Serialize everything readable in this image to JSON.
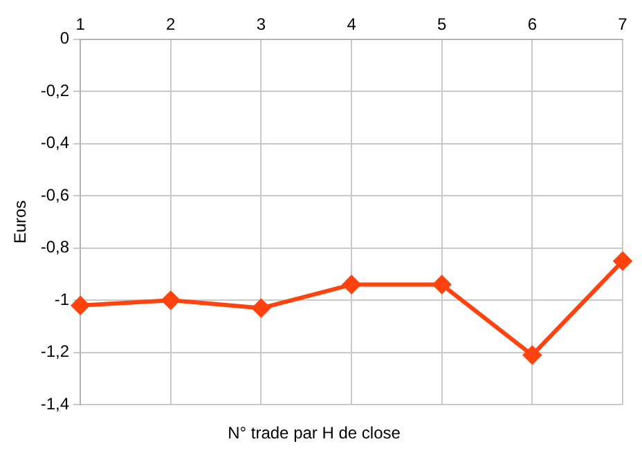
{
  "chart_data": {
    "type": "line",
    "xlabel": "N° trade par H de close",
    "ylabel": "Euros",
    "categories": [
      "1",
      "2",
      "3",
      "4",
      "5",
      "6",
      "7"
    ],
    "series": [
      {
        "color": "#ff420e",
        "values": [
          -1.02,
          -1.0,
          -1.03,
          -0.94,
          -0.94,
          -1.21,
          -0.85
        ]
      }
    ],
    "ylim": [
      -1.4,
      0
    ],
    "yticks": [
      {
        "value": -1.4,
        "label": "-1,4"
      },
      {
        "value": -1.2,
        "label": "-1,2"
      },
      {
        "value": -1,
        "label": "-1"
      },
      {
        "value": -0.8,
        "label": "-0,8"
      },
      {
        "value": -0.6,
        "label": "-0,6"
      },
      {
        "value": -0.4,
        "label": "-0,4"
      },
      {
        "value": -0.2,
        "label": "-0,2"
      },
      {
        "value": 0,
        "label": "0"
      }
    ],
    "grid": true,
    "legend": false,
    "marker": "diamond",
    "line_style": "solid"
  }
}
